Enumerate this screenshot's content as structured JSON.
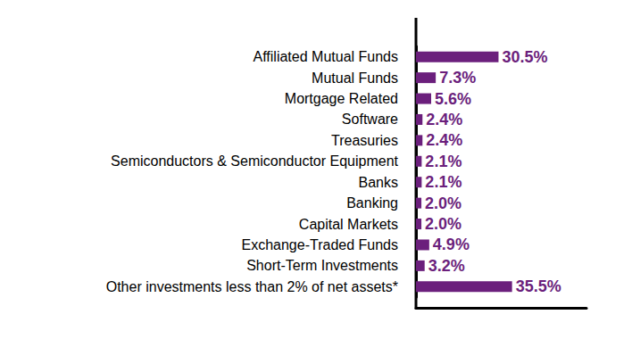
{
  "chart_data": {
    "type": "bar",
    "orientation": "horizontal",
    "categories": [
      "Affiliated Mutual Funds",
      "Mutual Funds",
      "Mortgage Related",
      "Software",
      "Treasuries",
      "Semiconductors & Semiconductor Equipment",
      "Banks",
      "Banking",
      "Capital Markets",
      "Exchange-Traded Funds",
      "Short-Term Investments",
      "Other investments less than 2% of net assets*"
    ],
    "values": [
      30.5,
      7.3,
      5.6,
      2.4,
      2.4,
      2.1,
      2.1,
      2.0,
      2.0,
      4.9,
      3.2,
      35.5
    ],
    "value_labels": [
      "30.5%",
      "7.3%",
      "5.6%",
      "2.4%",
      "2.4%",
      "2.1%",
      "2.1%",
      "2.0%",
      "2.0%",
      "4.9%",
      "3.2%",
      "35.5%"
    ],
    "color": "#6b1f7c",
    "xlim": [
      0,
      63
    ],
    "data_labels": true,
    "tick_labels": "y",
    "grid": false
  }
}
